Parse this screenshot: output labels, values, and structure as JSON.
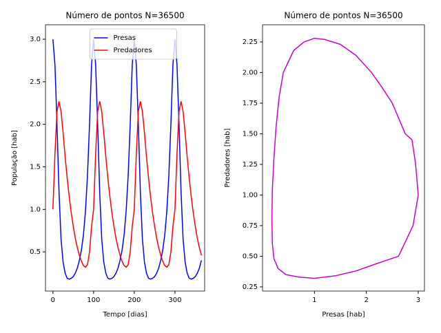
{
  "chart_data": [
    {
      "type": "line",
      "title": "Número de pontos N=36500",
      "xlabel": "Tempo [dias]",
      "ylabel": "População [hab]",
      "x": [
        0,
        5,
        10,
        15,
        20,
        25,
        30,
        35,
        40,
        45,
        50,
        55,
        60,
        65,
        70,
        75,
        80,
        85,
        90,
        95,
        100,
        105,
        110,
        115,
        120,
        125,
        130,
        135,
        140,
        145,
        150,
        155,
        160,
        165,
        170,
        175,
        180,
        185,
        190,
        195,
        200,
        205,
        210,
        215,
        220,
        225,
        230,
        235,
        240,
        245,
        250,
        255,
        260,
        265,
        270,
        275,
        280,
        285,
        290,
        295,
        300,
        305,
        310,
        315,
        320,
        325,
        330,
        335,
        340,
        345,
        350,
        355,
        360,
        365
      ],
      "series": [
        {
          "name": "Presas",
          "color": "#0000ff",
          "values": [
            3.0,
            2.7,
            2.0,
            1.2,
            0.65,
            0.38,
            0.25,
            0.19,
            0.18,
            0.19,
            0.21,
            0.25,
            0.31,
            0.4,
            0.52,
            0.7,
            0.98,
            1.4,
            2.0,
            2.7,
            3.0,
            2.7,
            2.0,
            1.2,
            0.65,
            0.38,
            0.25,
            0.19,
            0.18,
            0.19,
            0.21,
            0.25,
            0.31,
            0.4,
            0.52,
            0.7,
            0.98,
            1.4,
            2.0,
            2.7,
            3.0,
            2.7,
            2.0,
            1.2,
            0.65,
            0.38,
            0.25,
            0.19,
            0.18,
            0.19,
            0.21,
            0.25,
            0.31,
            0.4,
            0.52,
            0.7,
            0.98,
            1.4,
            2.0,
            2.7,
            3.0,
            2.7,
            2.0,
            1.2,
            0.65,
            0.38,
            0.25,
            0.19,
            0.18,
            0.19,
            0.21,
            0.25,
            0.31,
            0.4
          ]
        },
        {
          "name": "Predadores",
          "color": "#ff0000",
          "values": [
            1.0,
            1.65,
            2.15,
            2.27,
            2.15,
            1.9,
            1.62,
            1.37,
            1.15,
            0.96,
            0.8,
            0.66,
            0.55,
            0.46,
            0.39,
            0.34,
            0.32,
            0.35,
            0.5,
            0.8,
            1.0,
            1.65,
            2.15,
            2.27,
            2.15,
            1.9,
            1.62,
            1.37,
            1.15,
            0.96,
            0.8,
            0.66,
            0.55,
            0.46,
            0.39,
            0.34,
            0.32,
            0.35,
            0.5,
            0.8,
            1.0,
            1.65,
            2.15,
            2.27,
            2.15,
            1.9,
            1.62,
            1.37,
            1.15,
            0.96,
            0.8,
            0.66,
            0.55,
            0.46,
            0.39,
            0.34,
            0.32,
            0.35,
            0.5,
            0.8,
            1.0,
            1.65,
            2.15,
            2.27,
            2.15,
            1.9,
            1.62,
            1.37,
            1.15,
            0.96,
            0.8,
            0.66,
            0.55,
            0.46
          ]
        }
      ],
      "xlim": [
        -18.3,
        373
      ],
      "xticks": [
        0,
        100,
        200,
        300
      ],
      "ylim": [
        0.04,
        3.17
      ],
      "yticks": [
        0.5,
        {
          "value": 1.0,
          "label": "1.0"
        },
        1.5,
        {
          "value": 2.0,
          "label": "2.0"
        },
        2.5,
        {
          "value": 3.0,
          "label": "3.0"
        }
      ],
      "legend": "upper center"
    },
    {
      "type": "line",
      "title": "Número de pontos N=36500",
      "xlabel": "Presas [hab]",
      "ylabel": "Predadores [hab]",
      "x": [
        3.0,
        2.95,
        2.88,
        2.75,
        2.5,
        2.3,
        2.1,
        1.8,
        1.5,
        1.2,
        1.0,
        0.8,
        0.6,
        0.4,
        0.32,
        0.26,
        0.22,
        0.19,
        0.18,
        0.19,
        0.22,
        0.3,
        0.45,
        0.7,
        1.0,
        1.4,
        1.8,
        2.2,
        2.62,
        2.9,
        3.0
      ],
      "series": [
        {
          "color": "#cc00cc",
          "values": [
            1.0,
            1.25,
            1.45,
            1.5,
            1.75,
            1.88,
            2.0,
            2.14,
            2.23,
            2.27,
            2.28,
            2.25,
            2.18,
            2.0,
            1.8,
            1.55,
            1.3,
            1.05,
            0.8,
            0.6,
            0.48,
            0.4,
            0.35,
            0.33,
            0.32,
            0.34,
            0.38,
            0.44,
            0.5,
            0.75,
            1.0
          ]
        }
      ],
      "xlim": [
        0,
        3.12
      ],
      "xticks": [
        1,
        2,
        3
      ],
      "ylim": [
        0.216,
        2.39
      ],
      "yticks": [
        0.25,
        {
          "value": 0.5,
          "label": "0.50"
        },
        0.75,
        {
          "value": 1.0,
          "label": "1.00"
        },
        1.25,
        {
          "value": 1.5,
          "label": "1.50"
        },
        1.75,
        {
          "value": 2.0,
          "label": "2.00"
        },
        2.25
      ]
    }
  ]
}
